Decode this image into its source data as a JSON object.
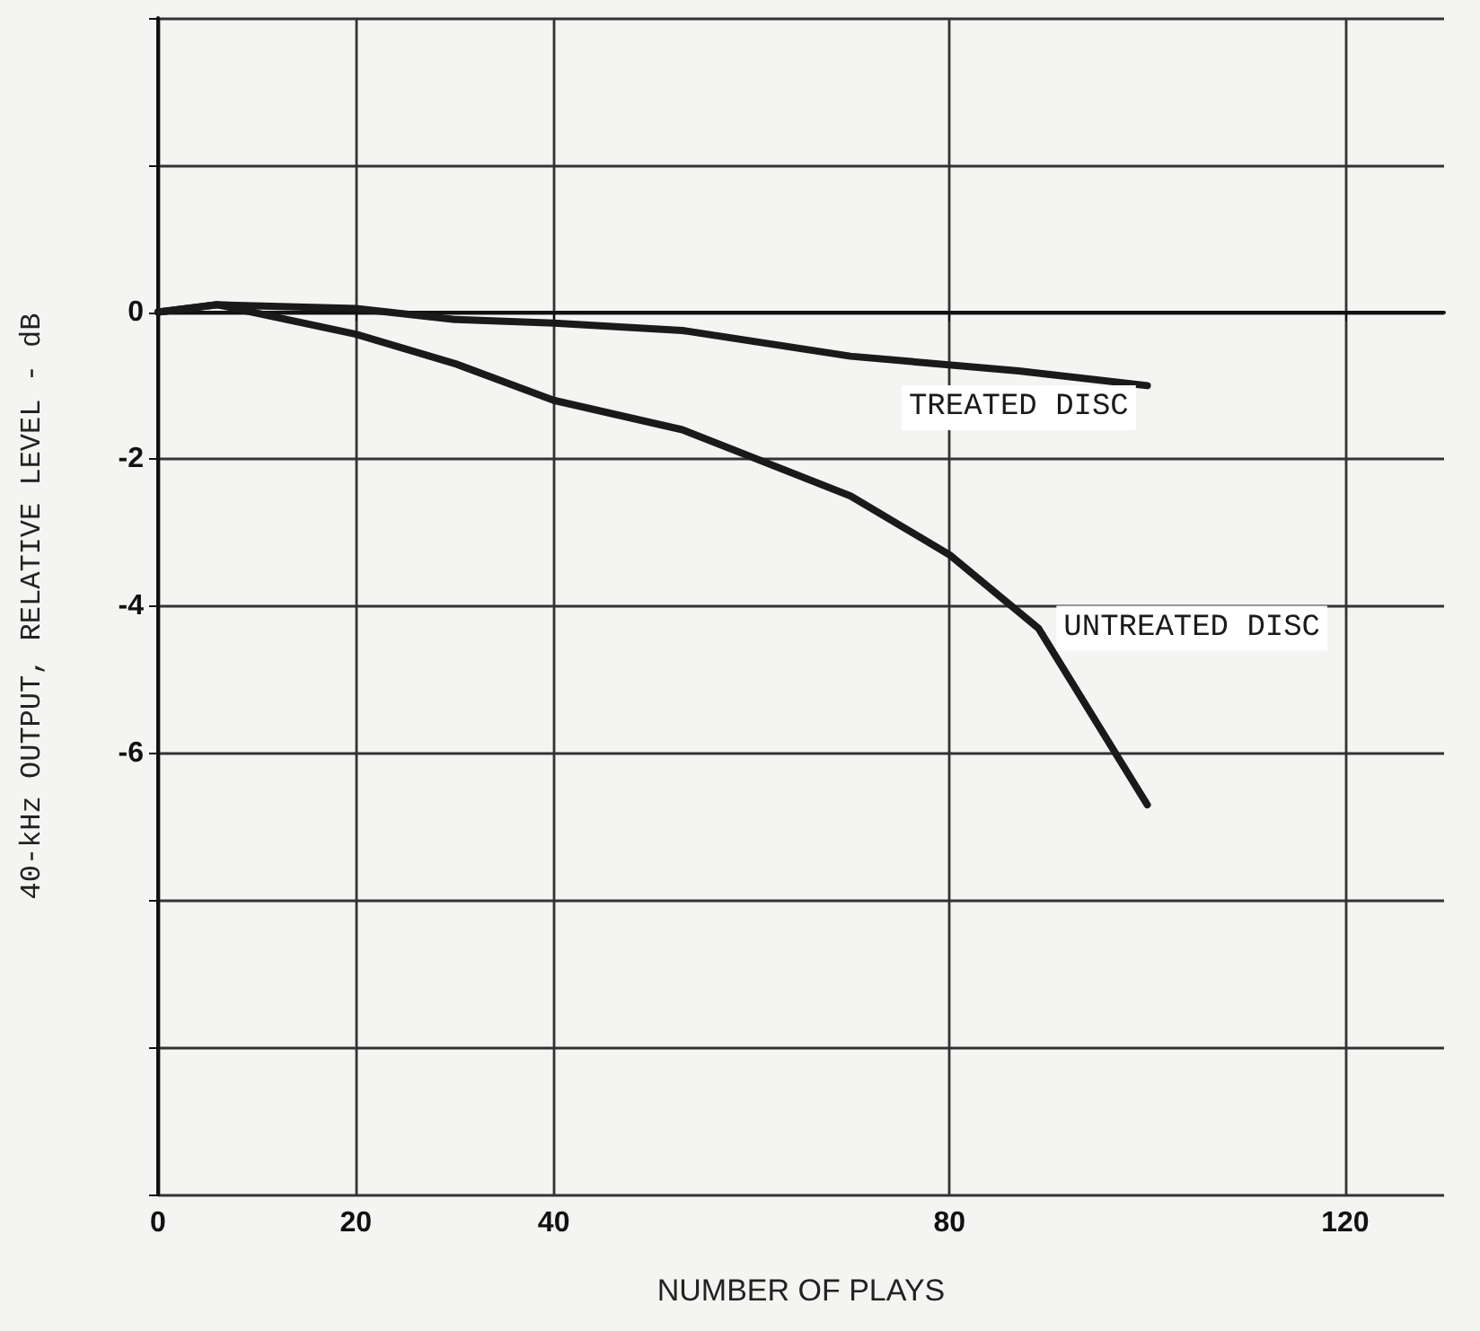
{
  "chart_data": {
    "type": "line",
    "xlabel": "NUMBER OF PLAYS",
    "ylabel": "40-kHz OUTPUT, RELATIVE LEVEL - dB",
    "xlim": [
      0,
      130
    ],
    "xticks": [
      0,
      20,
      40,
      80,
      120
    ],
    "ylim": [
      -12,
      4
    ],
    "yticks": [
      {
        "value": -12,
        "label": null
      },
      {
        "value": -10,
        "label": null
      },
      {
        "value": -8,
        "label": null
      },
      -6,
      -4,
      -2,
      0,
      {
        "value": 2,
        "label": null
      },
      {
        "value": 4,
        "label": null
      }
    ],
    "grid": true,
    "marker": "none",
    "line_style": "solid",
    "series": [
      {
        "name": "TREATED DISC",
        "color": "#1a1a1a",
        "x": [
          0,
          6,
          20,
          30,
          40,
          53,
          70,
          87,
          100
        ],
        "values": [
          0,
          0.1,
          0.05,
          -0.1,
          -0.15,
          -0.25,
          -0.6,
          -0.8,
          -1.0
        ]
      },
      {
        "name": "UNTREATED DISC",
        "color": "#1a1a1a",
        "x": [
          0,
          6,
          20,
          30,
          40,
          53,
          70,
          80,
          89,
          100
        ],
        "values": [
          0,
          0.1,
          -0.3,
          -0.7,
          -1.2,
          -1.6,
          -2.5,
          -3.3,
          -4.3,
          -6.7
        ]
      }
    ]
  }
}
